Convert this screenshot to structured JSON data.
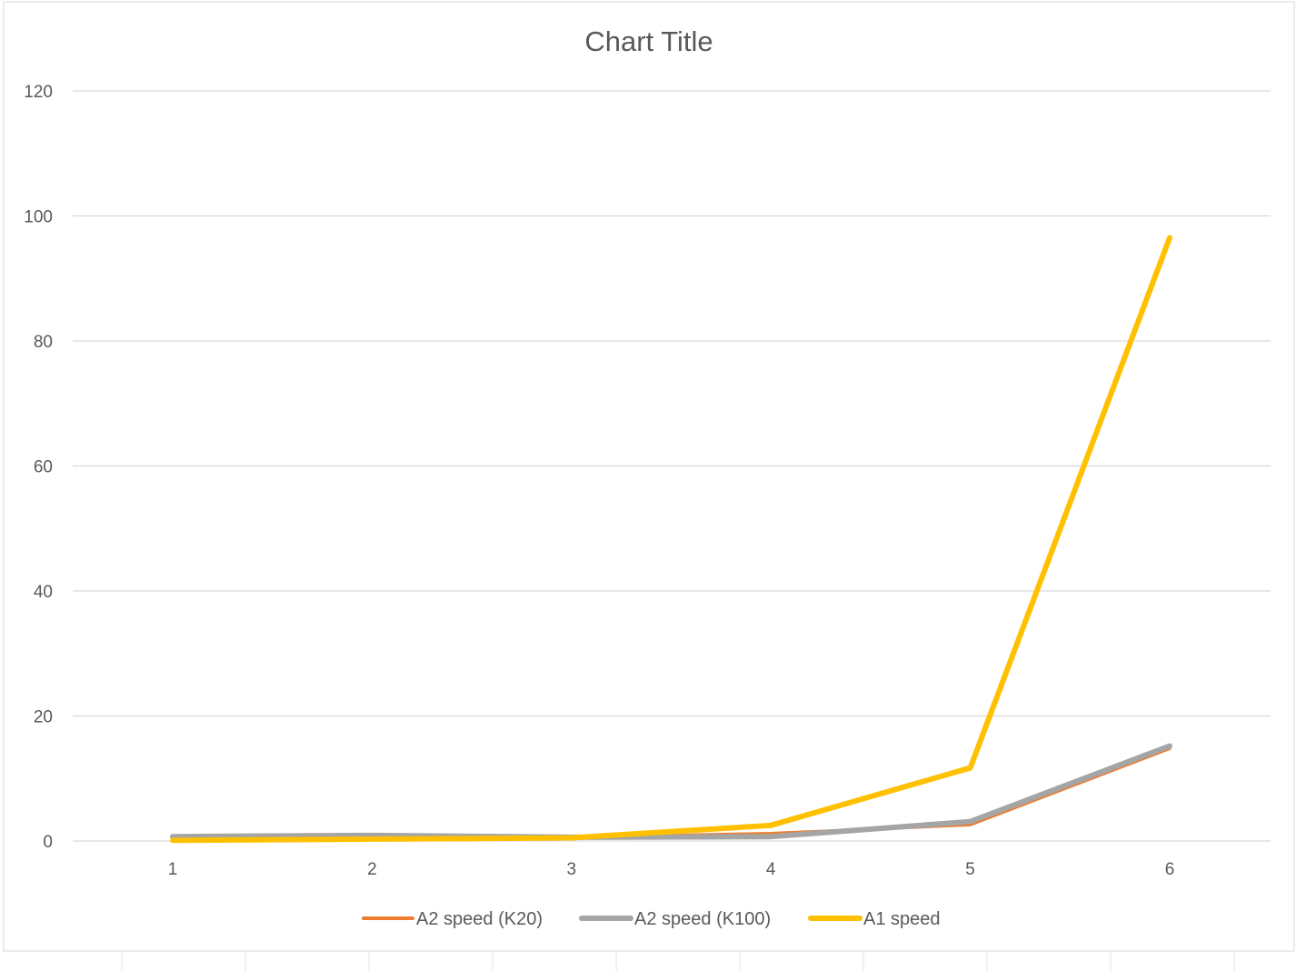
{
  "chart_data": {
    "type": "line",
    "title": "Chart Title",
    "xlabel": "",
    "ylabel": "",
    "categories": [
      "1",
      "2",
      "3",
      "4",
      "5",
      "6"
    ],
    "ylim": [
      0,
      120
    ],
    "yticks": [
      0,
      20,
      40,
      60,
      80,
      100,
      120
    ],
    "grid": true,
    "legend_position": "bottom",
    "series": [
      {
        "name": "A2 speed (K20)",
        "color": "#ED7D31",
        "values": [
          0.7,
          0.9,
          0.6,
          1.2,
          2.6,
          14.8
        ]
      },
      {
        "name": "A2 speed (K100)",
        "color": "#A5A5A5",
        "values": [
          0.7,
          0.9,
          0.6,
          0.7,
          3.1,
          15.2
        ]
      },
      {
        "name": "A1 speed",
        "color": "#FFC000",
        "values": [
          0.1,
          0.3,
          0.5,
          2.5,
          11.7,
          96.5
        ]
      }
    ]
  }
}
